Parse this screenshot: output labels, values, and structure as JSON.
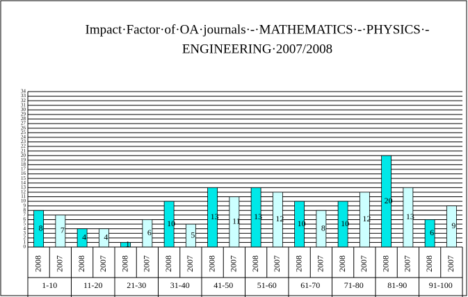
{
  "chart_data": {
    "type": "bar",
    "title": [
      "Impact·Factor·of·OA·journals·-·MATHEMATICS·-·PHYSICS·-",
      "ENGINEERING·2007/2008"
    ],
    "categories": [
      "1-10",
      "11-20",
      "21-30",
      "31-40",
      "41-50",
      "51-60",
      "61-70",
      "71-80",
      "81-90",
      "91-100"
    ],
    "series": [
      {
        "name": "2008",
        "color": "#00e8e8",
        "values": [
          8,
          4,
          1,
          10,
          13,
          13,
          10,
          10,
          20,
          6
        ]
      },
      {
        "name": "2007",
        "color": "#ccffff",
        "values": [
          7,
          4,
          6,
          5,
          11,
          12,
          8,
          12,
          13,
          9
        ]
      }
    ],
    "ylim": [
      0,
      34
    ],
    "yticks": [
      0,
      1,
      2,
      3,
      4,
      5,
      6,
      7,
      8,
      9,
      10,
      11,
      12,
      13,
      14,
      15,
      16,
      17,
      18,
      19,
      20,
      21,
      22,
      23,
      24,
      25,
      26,
      27,
      28,
      29,
      30,
      31,
      32,
      33,
      34
    ],
    "grid": true
  }
}
